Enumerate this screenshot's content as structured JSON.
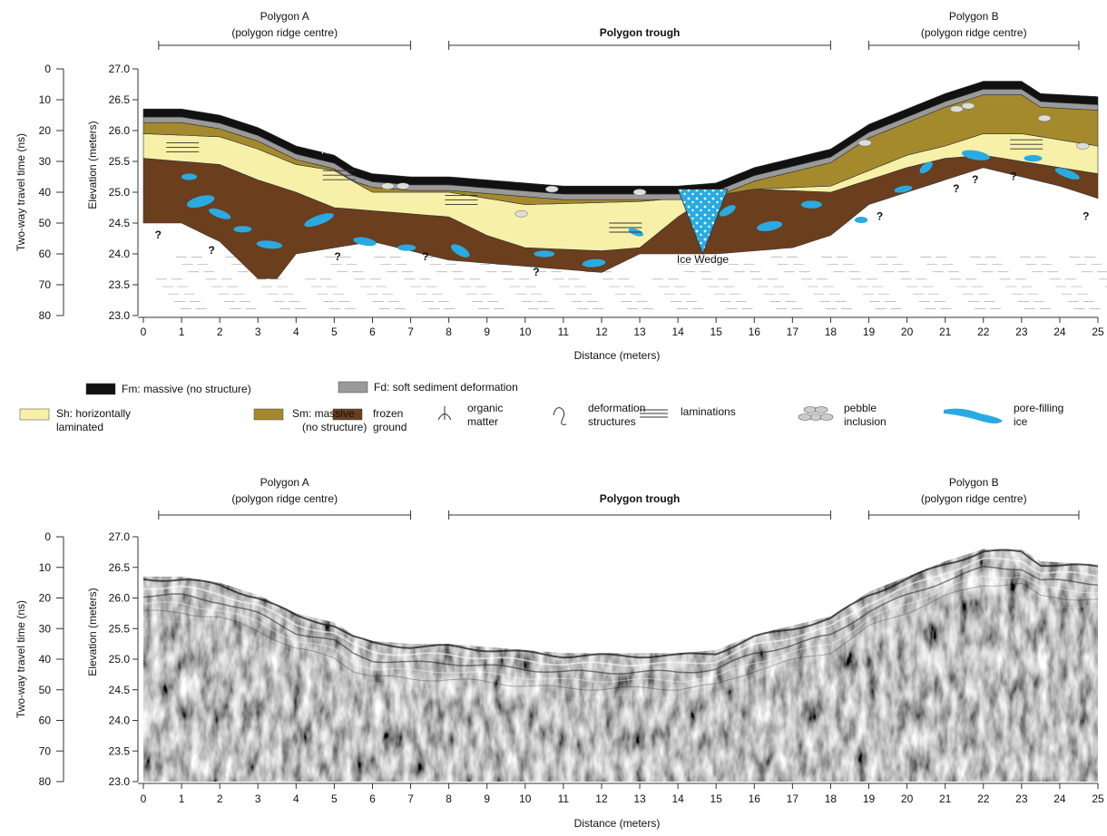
{
  "panels": [
    {
      "regions": [
        {
          "lines": [
            "Polygon A",
            "(polygon ridge centre)"
          ]
        },
        {
          "lines": [
            "Polygon trough"
          ]
        },
        {
          "lines": [
            "Polygon B",
            "(polygon ridge centre)"
          ]
        }
      ],
      "time_label": "Two-way travel time (ns)",
      "time_ticks": [
        0,
        10,
        20,
        30,
        40,
        50,
        60,
        70,
        80
      ],
      "elevation_label": "Elevation (meters)",
      "elevation_ticks": [
        "27.0",
        "26.5",
        "26.0",
        "25.5",
        "25.0",
        "24.5",
        "24.0",
        "23.5",
        "23.0"
      ],
      "distance_ticks": [
        0,
        1,
        2,
        3,
        4,
        5,
        6,
        7,
        8,
        9,
        10,
        11,
        12,
        13,
        14,
        15,
        16,
        17,
        18,
        19,
        20,
        21,
        22,
        23,
        24,
        25
      ],
      "distance_label": "Distance (meters)",
      "ice_wedge_label": "Ice Wedge",
      "question_marks": [
        "?",
        "?",
        "?",
        "?",
        "?",
        "?",
        "?",
        "?",
        "?",
        "?"
      ]
    },
    {
      "regions": [
        {
          "lines": [
            "Polygon A",
            "(polygon ridge centre)"
          ]
        },
        {
          "lines": [
            "Polygon trough"
          ]
        },
        {
          "lines": [
            "Polygon B",
            "(polygon ridge centre)"
          ]
        }
      ],
      "time_label": "Two-way travel time (ns)",
      "time_ticks": [
        0,
        10,
        20,
        30,
        40,
        50,
        60,
        70,
        80
      ],
      "elevation_label": "Elevation (meters)",
      "elevation_ticks": [
        "27.0",
        "26.5",
        "26.0",
        "25.5",
        "25.0",
        "24.5",
        "24.0",
        "23.5",
        "23.0"
      ],
      "distance_ticks": [
        0,
        1,
        2,
        3,
        4,
        5,
        6,
        7,
        8,
        9,
        10,
        11,
        12,
        13,
        14,
        15,
        16,
        17,
        18,
        19,
        20,
        21,
        22,
        23,
        24,
        25
      ],
      "distance_label": "Distance (meters)"
    }
  ],
  "legend": [
    {
      "lines": [
        "Fm: massive (no structure)"
      ]
    },
    {
      "lines": [
        "Fd: soft sediment deformation"
      ]
    },
    {
      "lines": [
        "Sh: horizontally",
        "laminated"
      ]
    },
    {
      "lines": [
        "Sm: massive",
        "(no structure)"
      ]
    },
    {
      "lines": [
        "frozen",
        "ground"
      ]
    },
    {
      "lines": [
        "organic",
        "matter"
      ]
    },
    {
      "lines": [
        "deformation",
        "structures"
      ]
    },
    {
      "lines": [
        "laminations"
      ]
    },
    {
      "lines": [
        "pebble",
        "inclusion"
      ]
    },
    {
      "lines": [
        "pore-filling",
        "ice"
      ]
    }
  ]
}
